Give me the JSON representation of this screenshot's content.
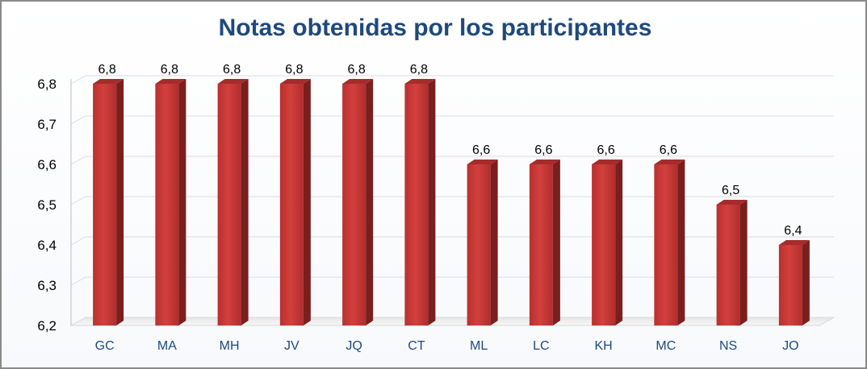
{
  "chart_data": {
    "type": "bar",
    "title": "Notas obtenidas por los participantes",
    "categories": [
      "GC",
      "MA",
      "MH",
      "JV",
      "JQ",
      "CT",
      "ML",
      "LC",
      "KH",
      "MC",
      "NS",
      "JO"
    ],
    "values": [
      6.8,
      6.8,
      6.8,
      6.8,
      6.8,
      6.8,
      6.6,
      6.6,
      6.6,
      6.6,
      6.5,
      6.4
    ],
    "value_labels": [
      "6,8",
      "6,8",
      "6,8",
      "6,8",
      "6,8",
      "6,8",
      "6,6",
      "6,6",
      "6,6",
      "6,6",
      "6,5",
      "6,4"
    ],
    "yticks": [
      "6,2",
      "6,3",
      "6,4",
      "6,5",
      "6,6",
      "6,7",
      "6,8"
    ],
    "ylim": [
      6.2,
      6.8
    ],
    "grid": true,
    "legend": "none",
    "bar_color": "#c0393b"
  }
}
